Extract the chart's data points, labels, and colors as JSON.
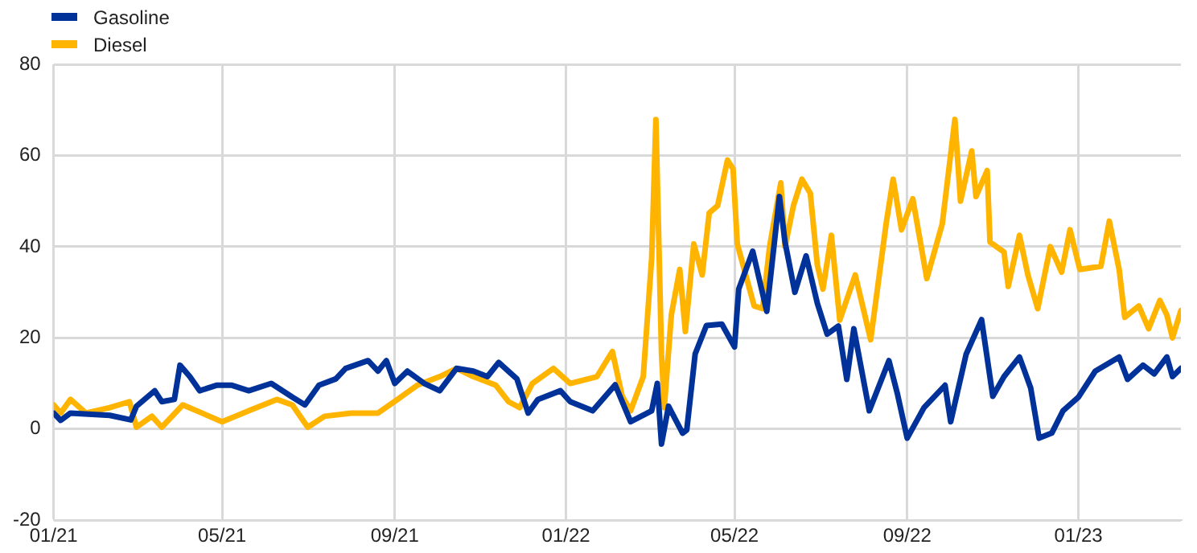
{
  "chart_data": {
    "type": "line",
    "legend": "top left",
    "grid": true,
    "marker": "none",
    "line_style": "solid",
    "xlim": [
      "2021-01-01",
      "2023-03-15"
    ],
    "xticks": [
      {
        "value": "2021-01-01",
        "label": "01/21"
      },
      {
        "value": "2021-05-01",
        "label": "05/21"
      },
      {
        "value": "2021-09-01",
        "label": "09/21"
      },
      {
        "value": "2022-01-01",
        "label": "01/22"
      },
      {
        "value": "2022-05-01",
        "label": "05/22"
      },
      {
        "value": "2022-09-01",
        "label": "09/22"
      },
      {
        "value": "2023-01-01",
        "label": "01/23"
      }
    ],
    "ylim": [
      -20,
      80
    ],
    "yticks": [
      -20,
      0,
      20,
      40,
      60,
      80
    ],
    "series": [
      {
        "name": "Gasoline",
        "color": "#003299",
        "x": [
          "2021-01-01",
          "2021-01-06",
          "2021-01-13",
          "2021-02-10",
          "2021-02-25",
          "2021-03-01",
          "2021-03-14",
          "2021-03-19",
          "2021-03-28",
          "2021-04-01",
          "2021-04-08",
          "2021-04-15",
          "2021-04-27",
          "2021-05-08",
          "2021-05-20",
          "2021-06-05",
          "2021-06-20",
          "2021-06-29",
          "2021-07-09",
          "2021-07-21",
          "2021-07-28",
          "2021-08-13",
          "2021-08-20",
          "2021-08-26",
          "2021-09-01",
          "2021-09-10",
          "2021-09-22",
          "2021-10-03",
          "2021-10-15",
          "2021-10-27",
          "2021-11-06",
          "2021-11-14",
          "2021-11-27",
          "2021-12-05",
          "2021-12-12",
          "2021-12-28",
          "2022-01-04",
          "2022-01-20",
          "2022-02-05",
          "2022-02-16",
          "2022-03-03",
          "2022-03-07",
          "2022-03-10",
          "2022-03-15",
          "2022-03-25",
          "2022-03-28",
          "2022-04-03",
          "2022-04-11",
          "2022-04-22",
          "2022-05-01",
          "2022-05-04",
          "2022-05-14",
          "2022-05-24",
          "2022-06-02",
          "2022-06-06",
          "2022-06-13",
          "2022-06-21",
          "2022-06-29",
          "2022-07-06",
          "2022-07-14",
          "2022-07-20",
          "2022-07-25",
          "2022-08-05",
          "2022-08-19",
          "2022-08-25",
          "2022-09-01",
          "2022-09-13",
          "2022-09-28",
          "2022-10-02",
          "2022-10-13",
          "2022-10-24",
          "2022-11-01",
          "2022-11-09",
          "2022-11-20",
          "2022-11-28",
          "2022-12-04",
          "2022-12-13",
          "2022-12-21",
          "2023-01-01",
          "2023-01-13",
          "2023-01-30",
          "2023-02-05",
          "2023-02-16",
          "2023-02-24",
          "2023-03-05",
          "2023-03-09",
          "2023-03-15"
        ],
        "values": [
          3.5,
          1.9,
          3.5,
          3,
          2,
          5,
          8.4,
          6,
          6.5,
          14,
          11.5,
          8.4,
          9.6,
          9.6,
          8.4,
          10,
          7,
          5.3,
          9.6,
          11,
          13.3,
          15,
          12.7,
          15,
          10,
          12.7,
          10,
          8.4,
          13.3,
          12.7,
          11.5,
          14.6,
          11,
          3.5,
          6.5,
          8.4,
          6,
          4,
          9.7,
          1.6,
          4,
          10,
          -3.3,
          5,
          -0.9,
          -0.2,
          16.5,
          22.7,
          23,
          18,
          30.7,
          39,
          25.8,
          51,
          41,
          30,
          38,
          27.6,
          20.8,
          22.6,
          10.9,
          22,
          4,
          15,
          7.8,
          -2,
          4.7,
          9.6,
          1.6,
          16.4,
          24,
          7.2,
          11.5,
          15.8,
          9,
          -2,
          -0.9,
          4,
          7,
          12.7,
          15.8,
          10.9,
          14,
          12.1,
          15.8,
          11.5,
          13.3
        ]
      },
      {
        "name": "Diesel",
        "color": "#ffb400",
        "x": [
          "2021-01-01",
          "2021-01-06",
          "2021-01-13",
          "2021-01-24",
          "2021-02-10",
          "2021-02-24",
          "2021-03-01",
          "2021-03-12",
          "2021-03-19",
          "2021-04-03",
          "2021-05-01",
          "2021-05-20",
          "2021-06-09",
          "2021-06-20",
          "2021-07-01",
          "2021-07-13",
          "2021-08-01",
          "2021-08-20",
          "2021-09-03",
          "2021-09-17",
          "2021-10-03",
          "2021-10-15",
          "2021-10-27",
          "2021-11-12",
          "2021-11-21",
          "2021-11-29",
          "2021-12-08",
          "2021-12-23",
          "2022-01-04",
          "2022-01-23",
          "2022-02-03",
          "2022-02-10",
          "2022-02-16",
          "2022-02-25",
          "2022-03-03",
          "2022-03-06",
          "2022-03-10",
          "2022-03-12",
          "2022-03-17",
          "2022-03-23",
          "2022-03-27",
          "2022-04-02",
          "2022-04-08",
          "2022-04-13",
          "2022-04-19",
          "2022-04-26",
          "2022-04-30",
          "2022-05-03",
          "2022-05-15",
          "2022-05-21",
          "2022-05-26",
          "2022-06-03",
          "2022-06-06",
          "2022-06-12",
          "2022-06-18",
          "2022-06-24",
          "2022-06-29",
          "2022-07-03",
          "2022-07-09",
          "2022-07-15",
          "2022-07-26",
          "2022-08-06",
          "2022-08-17",
          "2022-08-22",
          "2022-08-28",
          "2022-09-05",
          "2022-09-15",
          "2022-09-26",
          "2022-10-05",
          "2022-10-09",
          "2022-10-17",
          "2022-10-20",
          "2022-10-28",
          "2022-10-30",
          "2022-11-09",
          "2022-11-12",
          "2022-11-20",
          "2022-11-26",
          "2022-12-03",
          "2022-12-12",
          "2022-12-20",
          "2022-12-26",
          "2023-01-02",
          "2023-01-17",
          "2023-01-23",
          "2023-01-30",
          "2023-02-03",
          "2023-02-13",
          "2023-02-20",
          "2023-02-28",
          "2023-03-05",
          "2023-03-09",
          "2023-03-15"
        ],
        "values": [
          5.3,
          3.5,
          6.5,
          3.5,
          4.7,
          6,
          0.4,
          2.8,
          0.4,
          5.3,
          1.6,
          4,
          6.5,
          5.3,
          0.4,
          2.8,
          3.5,
          3.5,
          6.5,
          9.6,
          11.5,
          13.3,
          11.5,
          9.6,
          6,
          4.7,
          10,
          13.3,
          10,
          11.5,
          17,
          7.2,
          4,
          11.5,
          37.5,
          67.9,
          16.5,
          4.7,
          25,
          35,
          21.4,
          40.6,
          33.8,
          47.4,
          49,
          59,
          57,
          40.6,
          27,
          26.4,
          40,
          54,
          40,
          49,
          54.8,
          51.7,
          36,
          30.7,
          42.5,
          23.9,
          33.8,
          19.6,
          45,
          54.8,
          43.7,
          50.5,
          33,
          45,
          67.9,
          50,
          61,
          51,
          56.7,
          41,
          38.8,
          31.3,
          42.5,
          33.8,
          26.4,
          40,
          34.4,
          43.7,
          35,
          35.7,
          45.6,
          35,
          24.5,
          27,
          22,
          28.2,
          25,
          20,
          26
        ]
      }
    ]
  }
}
